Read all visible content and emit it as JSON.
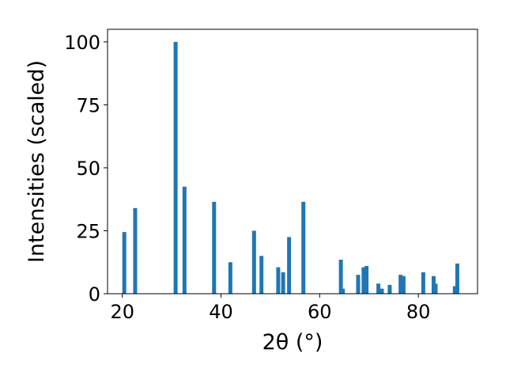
{
  "chart_data": {
    "type": "bar",
    "xlabel": "2θ (°)",
    "ylabel": "Intensities (scaled)",
    "xlim": [
      17,
      92
    ],
    "ylim": [
      0,
      105
    ],
    "xticks": [
      20,
      40,
      60,
      80
    ],
    "yticks": [
      0,
      25,
      50,
      75,
      100
    ],
    "grid": false,
    "bar_color": "#1f77b4",
    "bar_width": 0.8,
    "x": [
      20.4,
      22.6,
      30.8,
      32.6,
      38.6,
      41.9,
      46.7,
      48.2,
      51.6,
      52.6,
      53.8,
      56.7,
      64.3,
      64.7,
      67.8,
      68.9,
      69.5,
      71.9,
      72.6,
      74.2,
      76.4,
      77.0,
      81.0,
      83.1,
      83.5,
      87.4,
      87.9
    ],
    "values": [
      24.5,
      34,
      100,
      42.5,
      36.5,
      12.5,
      25,
      15,
      10.5,
      8.5,
      22.5,
      36.5,
      13.5,
      2,
      7.5,
      10.5,
      11,
      4,
      2,
      3.5,
      7.5,
      7,
      8.5,
      7,
      4,
      3,
      12
    ]
  }
}
